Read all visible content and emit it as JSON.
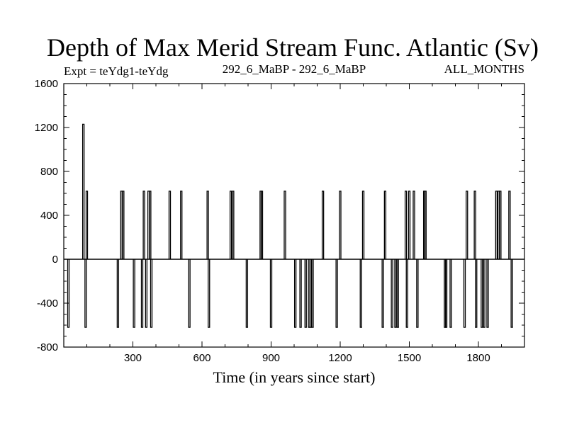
{
  "chart_data": {
    "type": "line",
    "title": "Depth of Max Merid Stream Func. Atlantic (Sv)",
    "subtitle_left": "Expt = teYdg1-teYdg",
    "subtitle_center": "292_6_MaBP - 292_6_MaBP",
    "subtitle_right": "ALL_MONTHS",
    "xlabel": "Time (in years since start)",
    "ylabel": "",
    "xlim": [
      0,
      2000
    ],
    "ylim": [
      -800,
      1600
    ],
    "xticks": [
      300,
      600,
      900,
      1200,
      1500,
      1800
    ],
    "yticks": [
      1600,
      1200,
      800,
      400,
      0,
      -400,
      -800
    ],
    "grid": false,
    "baseline": 0,
    "spikes": [
      {
        "x": 20,
        "y": -620
      },
      {
        "x": 85,
        "y": 1230
      },
      {
        "x": 95,
        "y": -620
      },
      {
        "x": 100,
        "y": 620
      },
      {
        "x": 235,
        "y": -620
      },
      {
        "x": 250,
        "y": 620
      },
      {
        "x": 258,
        "y": 620
      },
      {
        "x": 305,
        "y": -620
      },
      {
        "x": 340,
        "y": -620
      },
      {
        "x": 348,
        "y": 620
      },
      {
        "x": 358,
        "y": -620
      },
      {
        "x": 368,
        "y": 620
      },
      {
        "x": 375,
        "y": 620
      },
      {
        "x": 380,
        "y": -620
      },
      {
        "x": 460,
        "y": 620
      },
      {
        "x": 510,
        "y": 620
      },
      {
        "x": 545,
        "y": -620
      },
      {
        "x": 625,
        "y": 620
      },
      {
        "x": 630,
        "y": -620
      },
      {
        "x": 725,
        "y": 620
      },
      {
        "x": 735,
        "y": 620
      },
      {
        "x": 795,
        "y": -620
      },
      {
        "x": 855,
        "y": 620
      },
      {
        "x": 860,
        "y": 620
      },
      {
        "x": 900,
        "y": -620
      },
      {
        "x": 960,
        "y": 620
      },
      {
        "x": 1005,
        "y": -620
      },
      {
        "x": 1028,
        "y": -620
      },
      {
        "x": 1050,
        "y": -620
      },
      {
        "x": 1065,
        "y": -620
      },
      {
        "x": 1072,
        "y": -620
      },
      {
        "x": 1080,
        "y": -620
      },
      {
        "x": 1125,
        "y": 620
      },
      {
        "x": 1185,
        "y": -620
      },
      {
        "x": 1200,
        "y": 620
      },
      {
        "x": 1290,
        "y": -620
      },
      {
        "x": 1300,
        "y": 620
      },
      {
        "x": 1385,
        "y": -620
      },
      {
        "x": 1395,
        "y": 620
      },
      {
        "x": 1425,
        "y": -620
      },
      {
        "x": 1440,
        "y": -620
      },
      {
        "x": 1450,
        "y": -620
      },
      {
        "x": 1485,
        "y": 620
      },
      {
        "x": 1490,
        "y": -620
      },
      {
        "x": 1500,
        "y": 620
      },
      {
        "x": 1520,
        "y": 620
      },
      {
        "x": 1535,
        "y": -620
      },
      {
        "x": 1565,
        "y": 620
      },
      {
        "x": 1570,
        "y": 620
      },
      {
        "x": 1655,
        "y": -620
      },
      {
        "x": 1660,
        "y": -620
      },
      {
        "x": 1680,
        "y": -620
      },
      {
        "x": 1740,
        "y": -620
      },
      {
        "x": 1750,
        "y": 620
      },
      {
        "x": 1785,
        "y": 620
      },
      {
        "x": 1790,
        "y": -620
      },
      {
        "x": 1815,
        "y": -620
      },
      {
        "x": 1825,
        "y": -620
      },
      {
        "x": 1840,
        "y": -620
      },
      {
        "x": 1878,
        "y": 620
      },
      {
        "x": 1888,
        "y": 620
      },
      {
        "x": 1895,
        "y": 620
      },
      {
        "x": 1935,
        "y": 620
      },
      {
        "x": 1945,
        "y": -620
      }
    ]
  }
}
